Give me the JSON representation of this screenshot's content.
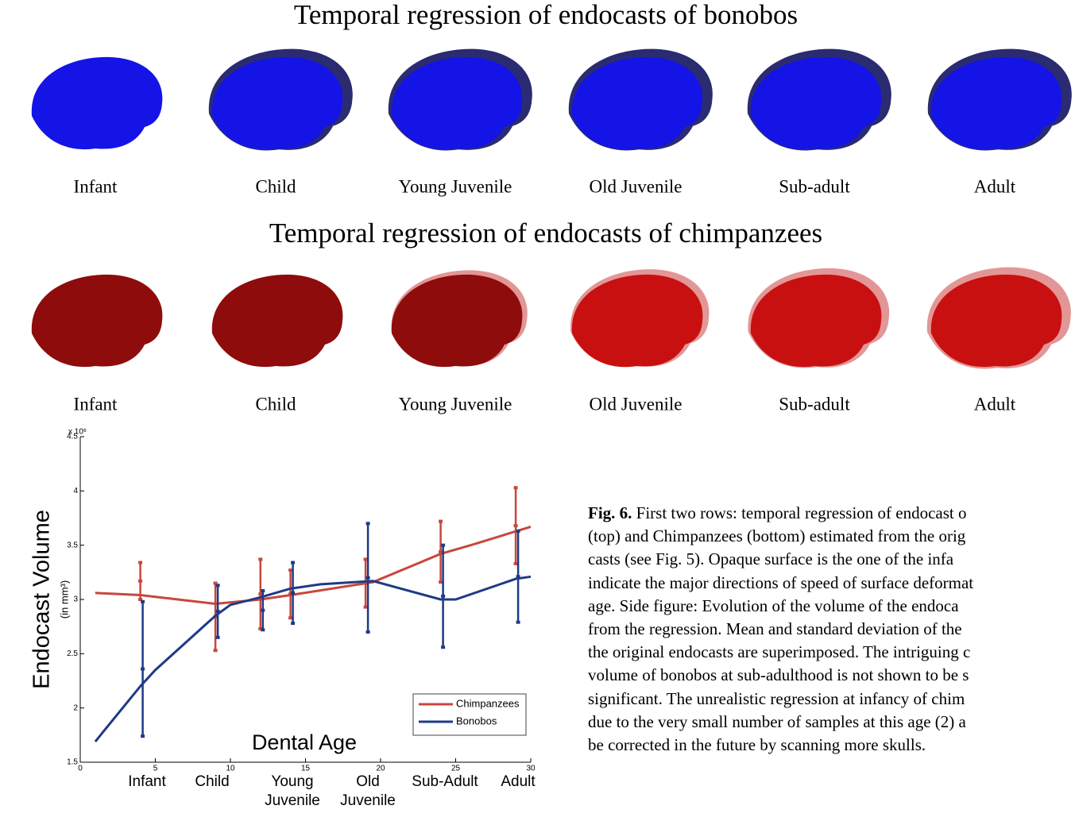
{
  "figure": {
    "title_top": "Temporal regression of endocasts of bonobos",
    "labels_top": [
      "Infant",
      "Child",
      "Young Juvenile",
      "Old Juvenile",
      "Sub-adult",
      "Adult"
    ],
    "title_bottom": "Temporal regression of endocasts of chimpanzees",
    "labels_bottom": [
      "Infant",
      "Child",
      "Young Juvenile",
      "Old Juvenile",
      "Sub-adult",
      "Adult"
    ]
  },
  "chart_data": {
    "type": "line",
    "y_label": "Endocast Volume",
    "y_unit": "(in mm³)",
    "y_scale_label": "x 10⁶",
    "x_label": "Dental Age",
    "age_labels": [
      [
        "Infant"
      ],
      [
        "Child"
      ],
      [
        "Young",
        "Juvenile"
      ],
      [
        "Old",
        "Juvenile"
      ],
      [
        "Sub-Adult"
      ],
      [
        "Adult"
      ]
    ],
    "xlim": [
      0,
      30
    ],
    "xticks": [
      0,
      5,
      10,
      15,
      20,
      25,
      30
    ],
    "ylim": [
      1.5,
      4.5
    ],
    "yticks": [
      1.5,
      2,
      2.5,
      3,
      3.5,
      4,
      4.5
    ],
    "legend": "lower right",
    "series": [
      {
        "name": "Chimpanzees",
        "color": "#c8473b",
        "x": [
          1,
          4,
          9,
          12,
          14,
          19.5,
          24,
          26,
          30
        ],
        "values": [
          3.06,
          3.04,
          2.96,
          3.0,
          3.04,
          3.16,
          3.42,
          3.5,
          3.67
        ],
        "error_bars": {
          "x": [
            4,
            9,
            12,
            14,
            19,
            24,
            29
          ],
          "mean": [
            3.17,
            2.84,
            3.05,
            3.05,
            3.15,
            3.44,
            3.68
          ],
          "error": [
            0.17,
            0.31,
            0.32,
            0.22,
            0.22,
            0.28,
            0.35
          ]
        }
      },
      {
        "name": "Bonobos",
        "color": "#1f3a86",
        "x": [
          1,
          4,
          5,
          9,
          10,
          12,
          14,
          16,
          19.5,
          24,
          25,
          29,
          30
        ],
        "values": [
          1.69,
          2.2,
          2.35,
          2.85,
          2.95,
          3.02,
          3.1,
          3.14,
          3.17,
          3.0,
          3.0,
          3.19,
          3.21
        ],
        "error_bars": {
          "x": [
            4,
            9,
            12,
            14,
            19,
            24,
            29
          ],
          "mean": [
            2.36,
            2.89,
            2.9,
            3.06,
            3.2,
            3.03,
            3.21
          ],
          "error": [
            0.62,
            0.24,
            0.18,
            0.28,
            0.5,
            0.47,
            0.42
          ]
        }
      }
    ]
  },
  "caption": {
    "label": "Fig. 6.",
    "lines": [
      "First two rows: temporal regression of endocast o",
      "(top) and Chimpanzees (bottom) estimated from the orig",
      "casts (see Fig. 5). Opaque surface is the one of the infa",
      "indicate the major directions of speed of surface deformat",
      "age. Side figure: Evolution of the volume of the endoca",
      "from the regression. Mean and standard deviation of the",
      "the original endocasts are superimposed. The intriguing c",
      "volume of bonobos at sub-adulthood is not shown to be s",
      "significant. The unrealistic regression at infancy of chim",
      "due to the very small number of samples at this age (2) a",
      "be corrected in the future by scanning more skulls."
    ]
  }
}
